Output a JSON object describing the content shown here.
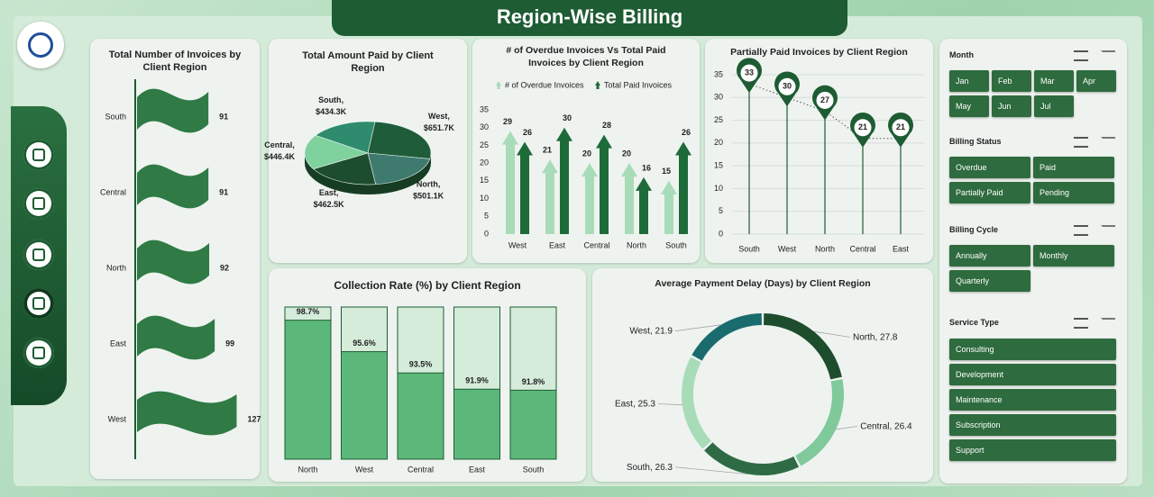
{
  "page": {
    "title": "Region-Wise Billing"
  },
  "chart_data": [
    {
      "type": "flag-bar",
      "title": "Total Number of Invoices by Client Region",
      "categories": [
        "South",
        "Central",
        "North",
        "East",
        "West"
      ],
      "values": [
        91,
        91,
        92,
        99,
        127
      ],
      "color": "#2f7a45"
    },
    {
      "type": "pie",
      "title": "Total Amount Paid by Client Region",
      "categories": [
        "South",
        "West",
        "North",
        "East",
        "Central"
      ],
      "values": [
        434300,
        651700,
        501100,
        462500,
        446400
      ],
      "value_labels": [
        "$434.3K",
        "$651.7K",
        "$501.1K",
        "$462.5K",
        "$446.4K"
      ],
      "label_separator": ",",
      "colors": [
        "#2e8b6e",
        "#1e5c3a",
        "#3f7a6e",
        "#1b4d2e",
        "#7fd19e"
      ]
    },
    {
      "type": "arrow-bar",
      "title": "# of Overdue Invoices Vs Total Paid Invoices by Client Region",
      "categories": [
        "West",
        "East",
        "Central",
        "North",
        "South"
      ],
      "series": [
        {
          "name": "# of Overdue Invoices",
          "color": "#a8dcb8",
          "values": [
            29,
            21,
            20,
            20,
            15
          ]
        },
        {
          "name": "Total Paid Invoices",
          "color": "#1e6b3a",
          "values": [
            26,
            30,
            28,
            16,
            26
          ]
        }
      ],
      "ylim": [
        0,
        35
      ],
      "yticks": [
        0,
        5,
        10,
        15,
        20,
        25,
        30,
        35
      ],
      "legend": "top"
    },
    {
      "type": "pin-line",
      "title": "Partially Paid Invoices by Client Region",
      "categories": [
        "South",
        "West",
        "North",
        "Central",
        "East"
      ],
      "values": [
        33,
        30,
        27,
        21,
        21
      ],
      "ylim": [
        0,
        35
      ],
      "yticks": [
        0,
        5,
        10,
        15,
        20,
        25,
        30,
        35
      ],
      "grid": true,
      "color": "#1e5c33"
    },
    {
      "type": "progress-column",
      "title": "Collection Rate (%) by Client Region",
      "categories": [
        "North",
        "West",
        "Central",
        "East",
        "South"
      ],
      "values": [
        98.7,
        95.6,
        93.5,
        91.9,
        91.8
      ],
      "value_labels": [
        "98.7%",
        "95.6%",
        "93.5%",
        "91.9%",
        "91.8%"
      ],
      "ylim": [
        85,
        100
      ],
      "color": "#5cb87a"
    },
    {
      "type": "donut",
      "title": "Average Payment Delay (Days) by Client Region",
      "categories": [
        "North",
        "Central",
        "South",
        "East",
        "West"
      ],
      "values": [
        27.8,
        26.4,
        26.3,
        25.3,
        21.9
      ],
      "label_separator": ", ",
      "colors": [
        "#1e4d2e",
        "#7fc99a",
        "#2e6b45",
        "#a8dcb8",
        "#1a6b6e"
      ]
    }
  ],
  "slicers": [
    {
      "title": "Month",
      "items": [
        "Jan",
        "Feb",
        "Mar",
        "Apr",
        "May",
        "Jun",
        "Jul"
      ]
    },
    {
      "title": "Billing Status",
      "items": [
        "Overdue",
        "Paid",
        "Partially Paid",
        "Pending"
      ]
    },
    {
      "title": "Billing Cycle",
      "items": [
        "Annually",
        "Monthly",
        "Quarterly"
      ]
    },
    {
      "title": "Service Type",
      "items": [
        "Consulting",
        "Development",
        "Maintenance",
        "Subscription",
        "Support"
      ]
    }
  ]
}
